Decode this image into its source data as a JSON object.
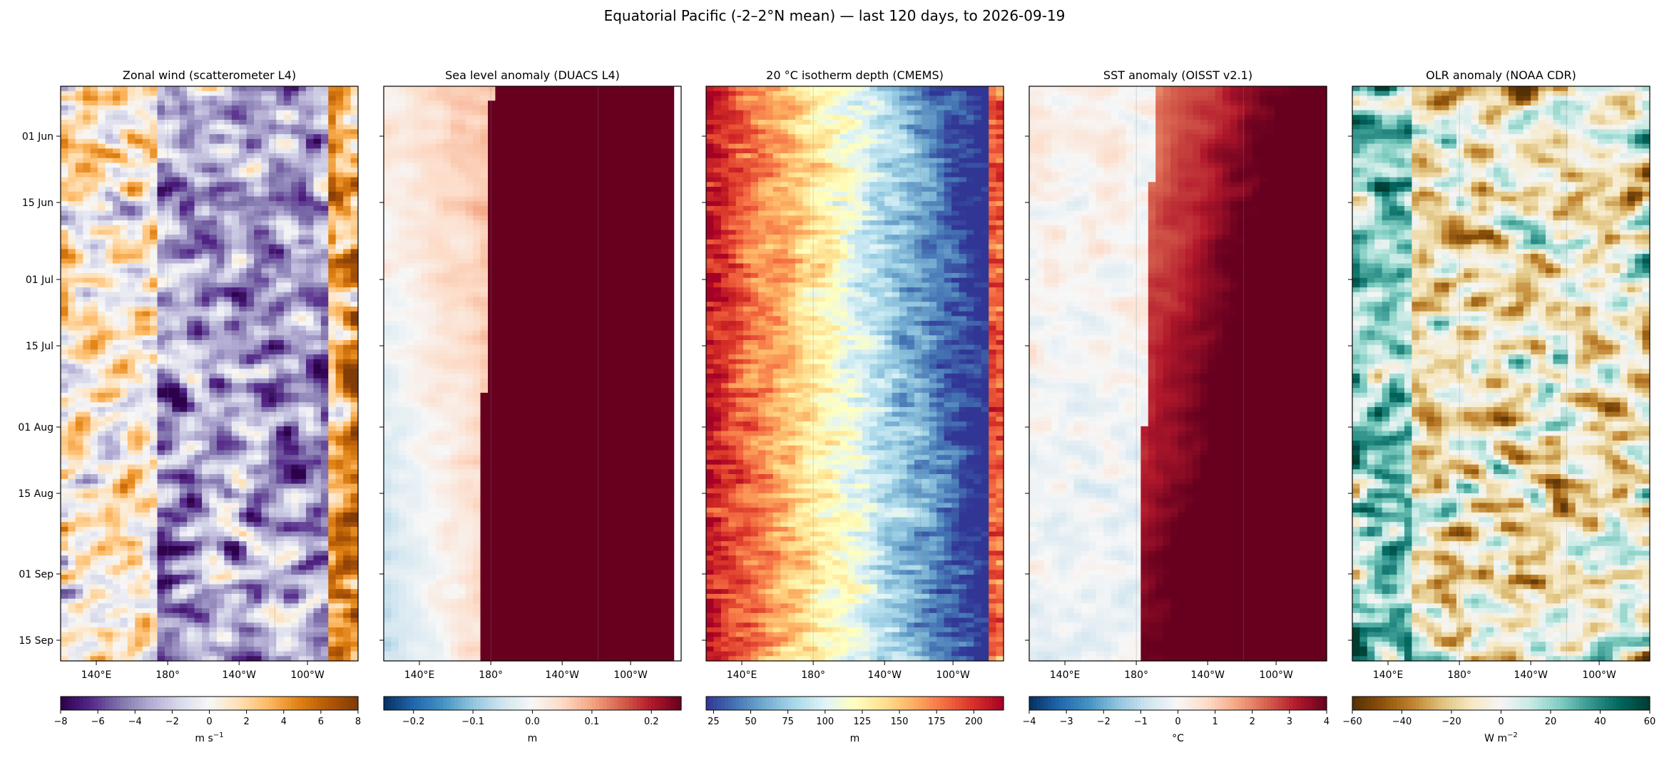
{
  "title": "Equatorial Pacific (-2–2°N mean) — last 120 days, to 2026-09-19",
  "chart_data": [
    {
      "type": "heatmap",
      "title": "Zonal wind (scatterometer L4)",
      "colormap": "PuOr_r",
      "colorbar": {
        "ticks": [
          "−8",
          "−6",
          "−4",
          "−2",
          "0",
          "2",
          "4",
          "6",
          "8"
        ],
        "range": [
          -8,
          8
        ],
        "label": "m s",
        "label_exp": "−1"
      },
      "xticks": [
        "140°E",
        "180°",
        "140°W",
        "100°W"
      ],
      "yticks": [
        "01 Jun",
        "15 Jun",
        "01 Jul",
        "15 Jul",
        "01 Aug",
        "15 Aug",
        "01 Sep",
        "15 Sep"
      ]
    },
    {
      "type": "heatmap",
      "title": "Sea level anomaly (DUACS L4)",
      "colormap": "RdBu_r",
      "colorbar": {
        "ticks": [
          "−0.2",
          "−0.1",
          "0.0",
          "0.1",
          "0.2"
        ],
        "range": [
          -0.25,
          0.25
        ],
        "label": "m",
        "label_exp": ""
      },
      "xticks": [
        "140°E",
        "180°",
        "140°W",
        "100°W"
      ],
      "yticks": []
    },
    {
      "type": "heatmap",
      "title": "20 °C isotherm depth (CMEMS)",
      "colormap": "RdYlBu_r",
      "colorbar": {
        "ticks": [
          "25",
          "50",
          "75",
          "100",
          "125",
          "150",
          "175",
          "200"
        ],
        "range": [
          20,
          220
        ],
        "label": "m",
        "label_exp": ""
      },
      "xticks": [
        "140°E",
        "180°",
        "140°W",
        "100°W"
      ],
      "yticks": []
    },
    {
      "type": "heatmap",
      "title": "SST anomaly (OISST v2.1)",
      "colormap": "RdBu_r",
      "colorbar": {
        "ticks": [
          "−4",
          "−3",
          "−2",
          "−1",
          "0",
          "1",
          "2",
          "3",
          "4"
        ],
        "range": [
          -4,
          4
        ],
        "label": "°C",
        "label_exp": ""
      },
      "xticks": [
        "140°E",
        "180°",
        "140°W",
        "100°W"
      ],
      "yticks": []
    },
    {
      "type": "heatmap",
      "title": "OLR anomaly (NOAA CDR)",
      "colormap": "BrBG_r",
      "colorbar": {
        "ticks": [
          "−60",
          "−40",
          "−20",
          "0",
          "20",
          "40",
          "60"
        ],
        "range": [
          -60,
          60
        ],
        "label": "W m",
        "label_exp": "−2"
      },
      "xticks": [
        "140°E",
        "180°",
        "140°W",
        "100°W"
      ],
      "yticks": []
    }
  ]
}
